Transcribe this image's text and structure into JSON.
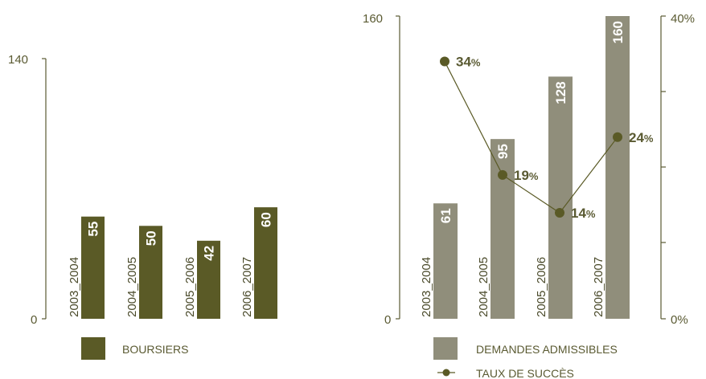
{
  "colors": {
    "boursiers": "#5a5a26",
    "demandes": "#908e7b",
    "taux": "#5a5a26",
    "axis": "#5a5a32"
  },
  "chart_data": [
    {
      "type": "bar",
      "categories": [
        "2003_2004",
        "2004_2005",
        "2005_2006",
        "2006_2007"
      ],
      "series": [
        {
          "name": "BOURSIERS",
          "values": [
            55,
            50,
            42,
            60
          ]
        }
      ],
      "ylim": [
        0,
        140
      ],
      "yticks": [
        "0",
        "140"
      ],
      "legend": "bottom",
      "grid": false
    },
    {
      "type": "bar",
      "categories": [
        "2003_2004",
        "2004_2005",
        "2005_2006",
        "2006_2007"
      ],
      "series": [
        {
          "name": "DEMANDES ADMISSIBLES",
          "values": [
            61,
            95,
            128,
            160
          ]
        },
        {
          "name": "TAUX DE SUCCÈS",
          "type": "line",
          "axis": "right",
          "values": [
            34,
            19,
            14,
            24
          ],
          "unit": "%"
        }
      ],
      "ylim": [
        0,
        160
      ],
      "y2lim": [
        0,
        40
      ],
      "yticks": [
        "0",
        "160"
      ],
      "y2ticks": [
        "0%",
        "40%"
      ],
      "legend": "bottom",
      "grid": false
    }
  ]
}
